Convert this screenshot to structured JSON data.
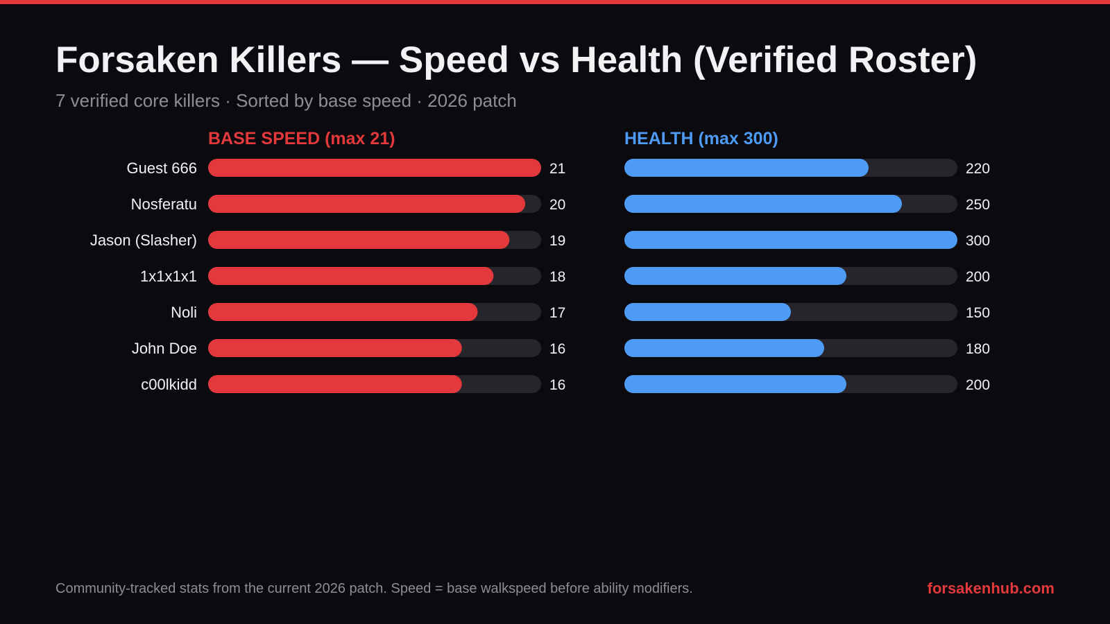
{
  "title": "Forsaken Killers — Speed vs Health (Verified Roster)",
  "subtitle": "7 verified core killers · Sorted by base speed · 2026 patch",
  "footer": {
    "note": "Community-tracked stats from the current 2026 patch. Speed = base walkspeed before ability modifiers.",
    "site": "forsakenhub.com"
  },
  "colors": {
    "accent": "#e3393c",
    "speed": "#e3393c",
    "health": "#4d9bf5",
    "track": "#25252b",
    "background": "#0b0b0f"
  },
  "chart_data": [
    {
      "type": "bar",
      "title": "BASE SPEED (max 21)",
      "categories": [
        "Guest 666",
        "Nosferatu",
        "Jason (Slasher)",
        "1x1x1x1",
        "Noli",
        "John Doe",
        "c00lkidd"
      ],
      "values": [
        21,
        20,
        19,
        18,
        17,
        16,
        16
      ],
      "xlim": [
        0,
        21
      ],
      "grid": false
    },
    {
      "type": "bar",
      "title": "HEALTH (max 300)",
      "categories": [
        "Guest 666",
        "Nosferatu",
        "Jason (Slasher)",
        "1x1x1x1",
        "Noli",
        "John Doe",
        "c00lkidd"
      ],
      "values": [
        220,
        250,
        300,
        200,
        150,
        180,
        200
      ],
      "xlim": [
        0,
        300
      ],
      "grid": false
    }
  ]
}
